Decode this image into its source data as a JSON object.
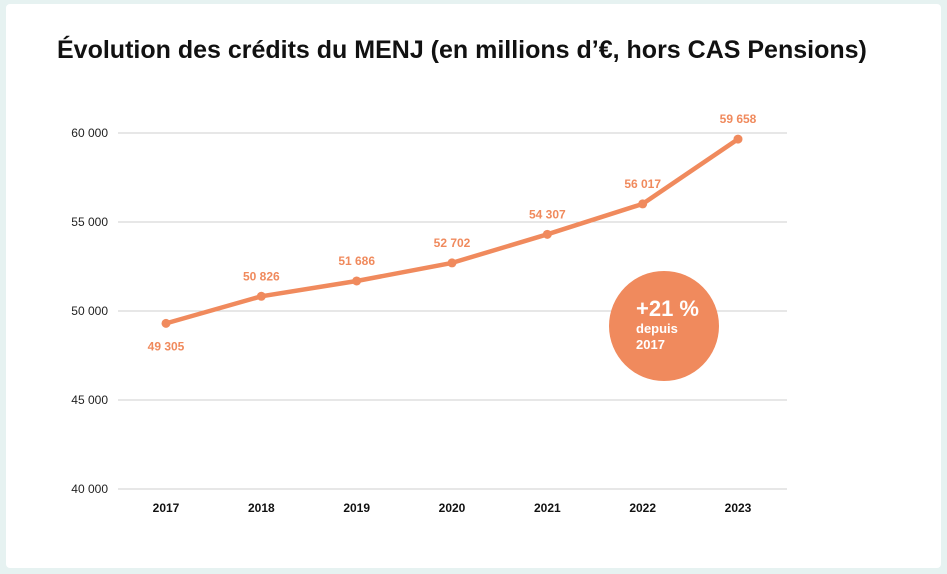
{
  "chart_data": {
    "type": "line",
    "title": "Évolution des crédits du MENJ (en millions d’€, hors CAS Pensions)",
    "x": [
      "2017",
      "2018",
      "2019",
      "2020",
      "2021",
      "2022",
      "2023"
    ],
    "series": [
      {
        "values": [
          49305,
          50826,
          51686,
          52702,
          54307,
          56017,
          59658
        ]
      }
    ],
    "data_labels": [
      "49 305",
      "50 826",
      "51 686",
      "52 702",
      "54 307",
      "56 017",
      "59 658"
    ],
    "yticks": [
      40000,
      45000,
      50000,
      55000,
      60000
    ],
    "ytick_labels": [
      "40 000",
      "45 000",
      "50 000",
      "55 000",
      "60 000"
    ],
    "ylim": [
      40000,
      60000
    ],
    "grid": true,
    "color": "#f08a5d",
    "annotation": {
      "value": "+21 %",
      "text_line1": "depuis",
      "text_line2": "2017"
    }
  }
}
